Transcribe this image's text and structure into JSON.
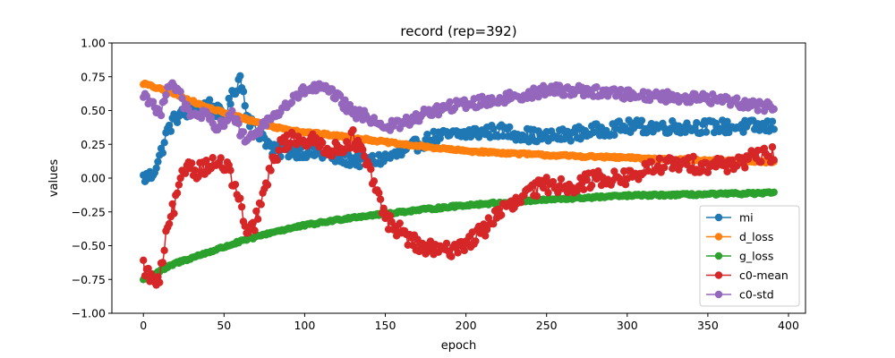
{
  "chart_data": {
    "type": "line",
    "title": "record (rep=392)",
    "xlabel": "epoch",
    "ylabel": "values",
    "xlim": [
      -19.55,
      410.55
    ],
    "ylim": [
      -1.0,
      1.0
    ],
    "xticks": [
      0,
      50,
      100,
      150,
      200,
      250,
      300,
      350,
      400
    ],
    "yticks": [
      -1.0,
      -0.75,
      -0.5,
      -0.25,
      0.0,
      0.25,
      0.5,
      0.75,
      1.0
    ],
    "xtick_labels": [
      "0",
      "50",
      "100",
      "150",
      "200",
      "250",
      "300",
      "350",
      "400"
    ],
    "ytick_labels": [
      "−1.00",
      "−0.75",
      "−0.50",
      "−0.25",
      "0.00",
      "0.25",
      "0.50",
      "0.75",
      "1.00"
    ],
    "grid": false,
    "legend_position": "lower-right",
    "markers": true,
    "x_range": [
      0,
      391
    ],
    "series": [
      {
        "name": "mi",
        "color": "#1f77b4",
        "keypoints": [
          [
            0,
            0.0
          ],
          [
            5,
            0.02
          ],
          [
            10,
            0.15
          ],
          [
            15,
            0.35
          ],
          [
            20,
            0.45
          ],
          [
            30,
            0.5
          ],
          [
            40,
            0.55
          ],
          [
            50,
            0.45
          ],
          [
            55,
            0.6
          ],
          [
            60,
            0.75
          ],
          [
            65,
            0.45
          ],
          [
            70,
            0.35
          ],
          [
            75,
            0.3
          ],
          [
            80,
            0.2
          ],
          [
            100,
            0.2
          ],
          [
            120,
            0.15
          ],
          [
            140,
            0.12
          ],
          [
            160,
            0.18
          ],
          [
            170,
            0.25
          ],
          [
            180,
            0.3
          ],
          [
            200,
            0.33
          ],
          [
            220,
            0.35
          ],
          [
            250,
            0.3
          ],
          [
            280,
            0.35
          ],
          [
            300,
            0.38
          ],
          [
            330,
            0.38
          ],
          [
            360,
            0.38
          ],
          [
            391,
            0.38
          ]
        ],
        "noise": 0.05
      },
      {
        "name": "d_loss",
        "color": "#ff7f0e",
        "keypoints": [
          [
            0,
            0.7
          ],
          [
            20,
            0.62
          ],
          [
            40,
            0.52
          ],
          [
            60,
            0.45
          ],
          [
            80,
            0.38
          ],
          [
            100,
            0.34
          ],
          [
            130,
            0.3
          ],
          [
            160,
            0.25
          ],
          [
            200,
            0.2
          ],
          [
            250,
            0.17
          ],
          [
            300,
            0.15
          ],
          [
            350,
            0.13
          ],
          [
            391,
            0.12
          ]
        ],
        "noise": 0.008
      },
      {
        "name": "g_loss",
        "color": "#2ca02c",
        "keypoints": [
          [
            0,
            -0.75
          ],
          [
            20,
            -0.63
          ],
          [
            40,
            -0.55
          ],
          [
            60,
            -0.47
          ],
          [
            80,
            -0.4
          ],
          [
            100,
            -0.35
          ],
          [
            130,
            -0.29
          ],
          [
            160,
            -0.25
          ],
          [
            200,
            -0.2
          ],
          [
            250,
            -0.16
          ],
          [
            300,
            -0.13
          ],
          [
            350,
            -0.12
          ],
          [
            391,
            -0.11
          ]
        ],
        "noise": 0.008
      },
      {
        "name": "c0-mean",
        "color": "#d62728",
        "keypoints": [
          [
            0,
            -0.65
          ],
          [
            5,
            -0.75
          ],
          [
            10,
            -0.78
          ],
          [
            13,
            -0.5
          ],
          [
            18,
            -0.25
          ],
          [
            22,
            -0.1
          ],
          [
            25,
            0.05
          ],
          [
            28,
            0.12
          ],
          [
            32,
            0.05
          ],
          [
            40,
            0.1
          ],
          [
            50,
            0.1
          ],
          [
            55,
            0.0
          ],
          [
            60,
            -0.2
          ],
          [
            65,
            -0.45
          ],
          [
            70,
            -0.3
          ],
          [
            75,
            -0.1
          ],
          [
            80,
            0.1
          ],
          [
            85,
            0.25
          ],
          [
            95,
            0.3
          ],
          [
            110,
            0.25
          ],
          [
            120,
            0.2
          ],
          [
            130,
            0.3
          ],
          [
            135,
            0.2
          ],
          [
            140,
            0.05
          ],
          [
            145,
            -0.1
          ],
          [
            150,
            -0.3
          ],
          [
            160,
            -0.4
          ],
          [
            170,
            -0.5
          ],
          [
            185,
            -0.55
          ],
          [
            200,
            -0.48
          ],
          [
            210,
            -0.4
          ],
          [
            220,
            -0.25
          ],
          [
            230,
            -0.2
          ],
          [
            240,
            -0.1
          ],
          [
            250,
            -0.05
          ],
          [
            260,
            -0.05
          ],
          [
            270,
            -0.05
          ],
          [
            280,
            0.0
          ],
          [
            300,
            0.0
          ],
          [
            320,
            0.1
          ],
          [
            340,
            0.1
          ],
          [
            360,
            0.1
          ],
          [
            380,
            0.15
          ],
          [
            391,
            0.18
          ]
        ],
        "noise": 0.06
      },
      {
        "name": "c0-std",
        "color": "#9467bd",
        "keypoints": [
          [
            0,
            0.62
          ],
          [
            5,
            0.57
          ],
          [
            10,
            0.45
          ],
          [
            15,
            0.7
          ],
          [
            20,
            0.68
          ],
          [
            25,
            0.55
          ],
          [
            30,
            0.45
          ],
          [
            35,
            0.48
          ],
          [
            40,
            0.45
          ],
          [
            45,
            0.35
          ],
          [
            50,
            0.42
          ],
          [
            55,
            0.48
          ],
          [
            60,
            0.35
          ],
          [
            65,
            0.25
          ],
          [
            70,
            0.35
          ],
          [
            75,
            0.4
          ],
          [
            80,
            0.45
          ],
          [
            90,
            0.55
          ],
          [
            100,
            0.65
          ],
          [
            110,
            0.67
          ],
          [
            120,
            0.6
          ],
          [
            130,
            0.48
          ],
          [
            140,
            0.45
          ],
          [
            150,
            0.38
          ],
          [
            160,
            0.4
          ],
          [
            170,
            0.45
          ],
          [
            180,
            0.5
          ],
          [
            200,
            0.55
          ],
          [
            220,
            0.58
          ],
          [
            250,
            0.65
          ],
          [
            270,
            0.65
          ],
          [
            300,
            0.62
          ],
          [
            330,
            0.6
          ],
          [
            360,
            0.58
          ],
          [
            391,
            0.52
          ]
        ],
        "noise": 0.04
      }
    ]
  }
}
